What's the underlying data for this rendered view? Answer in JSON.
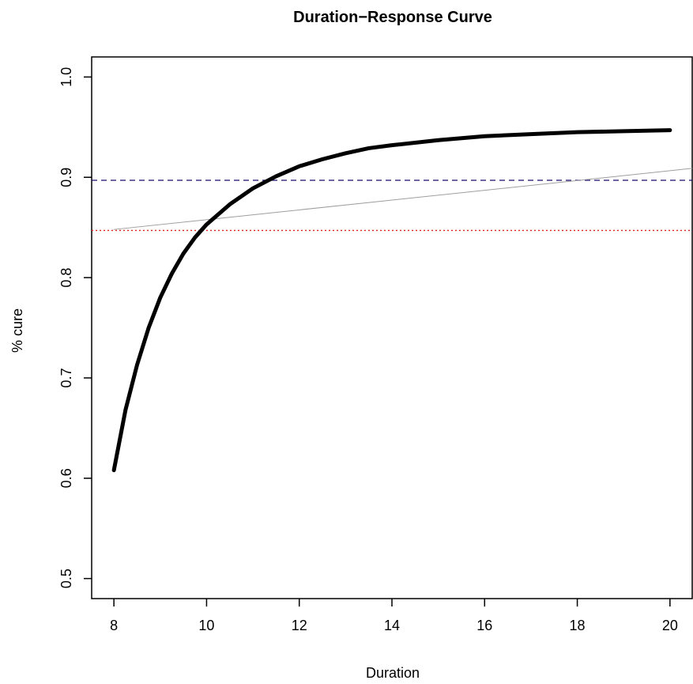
{
  "chart_data": {
    "type": "line",
    "title": "Duration−Response Curve",
    "xlabel": "Duration",
    "ylabel": "% cure",
    "xlim": [
      8,
      20
    ],
    "ylim": [
      0.5,
      1.0
    ],
    "x_ticks": [
      "8",
      "10",
      "12",
      "14",
      "16",
      "18",
      "20"
    ],
    "y_ticks": [
      "0.5",
      "0.6",
      "0.7",
      "0.8",
      "0.9",
      "1.0"
    ],
    "grid": false,
    "legend": "none",
    "series": [
      {
        "style": "thick-solid",
        "color": "#000000",
        "x": [
          8.0,
          8.25,
          8.5,
          8.75,
          9.0,
          9.25,
          9.5,
          9.75,
          10.0,
          10.5,
          11.0,
          11.5,
          12.0,
          12.5,
          13.0,
          13.5,
          14.0,
          15.0,
          16.0,
          17.0,
          18.0,
          19.0,
          20.0
        ],
        "y": [
          0.608,
          0.668,
          0.713,
          0.75,
          0.78,
          0.804,
          0.824,
          0.84,
          0.853,
          0.873,
          0.889,
          0.901,
          0.911,
          0.918,
          0.924,
          0.929,
          0.932,
          0.937,
          0.941,
          0.943,
          0.945,
          0.946,
          0.947
        ]
      },
      {
        "style": "thin-solid",
        "color": "#9e9e9e",
        "x": [
          8.0,
          20.5
        ],
        "y": [
          0.848,
          0.909
        ]
      }
    ],
    "reference_lines": [
      {
        "orientation": "horizontal",
        "y": 0.897,
        "color": "#1a0a6e",
        "style": "dashed"
      },
      {
        "orientation": "horizontal",
        "y": 0.847,
        "color": "#e0241c",
        "style": "dotted"
      }
    ]
  }
}
